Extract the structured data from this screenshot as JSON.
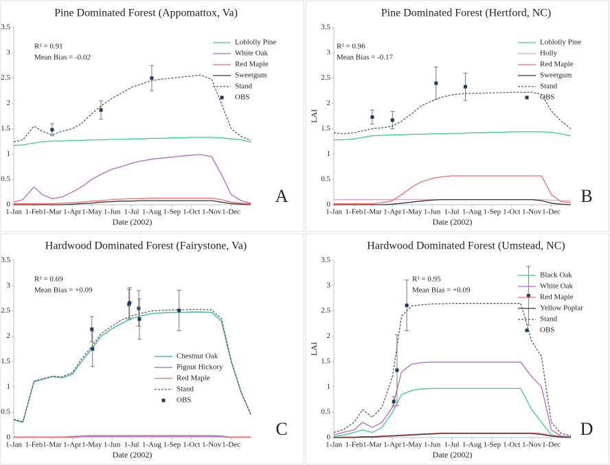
{
  "chart_data": [
    {
      "type": "line",
      "title": "Pine Dominated Forest (Appomattox, Va)",
      "annotations": [
        "R² = 0.91",
        "Mean Bias = -0.02"
      ],
      "panel_label": "A",
      "xlabel": "Date (2002)",
      "x": [
        1,
        15,
        32,
        45,
        60,
        75,
        91,
        105,
        121,
        135,
        152,
        166,
        182,
        196,
        213,
        228,
        244,
        258,
        274,
        288,
        305,
        320,
        335,
        350,
        365
      ],
      "xlim": [
        1,
        365
      ],
      "xticks": [
        {
          "value": 1,
          "label": "1-Jan"
        },
        {
          "value": 32,
          "label": "1-Feb"
        },
        {
          "value": 60,
          "label": "1-Mar"
        },
        {
          "value": 91,
          "label": "1-Apr"
        },
        {
          "value": 121,
          "label": "1-May"
        },
        {
          "value": 152,
          "label": "1-Jun"
        },
        {
          "value": 182,
          "label": "1-Jul"
        },
        {
          "value": 213,
          "label": "1-Aug"
        },
        {
          "value": 244,
          "label": "1-Sep"
        },
        {
          "value": 274,
          "label": "1-Oct"
        },
        {
          "value": 305,
          "label": "1-Nov"
        },
        {
          "value": 335,
          "label": "1-Dec"
        }
      ],
      "ylim": [
        0,
        3.5
      ],
      "yticks": [
        0,
        0.5,
        1,
        1.5,
        2,
        2.5,
        3,
        3.5
      ],
      "legend_position": "upper right",
      "series": [
        {
          "name": "Loblolly Pine",
          "color": "#3cc98f",
          "values": [
            1.17,
            1.18,
            1.22,
            1.24,
            1.26,
            1.26,
            1.27,
            1.27,
            1.28,
            1.28,
            1.29,
            1.29,
            1.3,
            1.3,
            1.31,
            1.31,
            1.32,
            1.32,
            1.33,
            1.33,
            1.33,
            1.32,
            1.3,
            1.28,
            1.24
          ]
        },
        {
          "name": "White Oak",
          "color": "#b266cc",
          "values": [
            0.05,
            0.1,
            0.35,
            0.2,
            0.12,
            0.15,
            0.25,
            0.35,
            0.5,
            0.6,
            0.7,
            0.75,
            0.82,
            0.86,
            0.9,
            0.92,
            0.94,
            0.96,
            0.98,
            0.99,
            0.95,
            0.6,
            0.2,
            0.08,
            0.03
          ]
        },
        {
          "name": "Red Maple",
          "color": "#f06a6a",
          "values": [
            0.02,
            0.02,
            0.02,
            0.02,
            0.02,
            0.03,
            0.04,
            0.05,
            0.07,
            0.08,
            0.1,
            0.11,
            0.12,
            0.12,
            0.13,
            0.13,
            0.13,
            0.13,
            0.13,
            0.13,
            0.13,
            0.1,
            0.05,
            0.03,
            0.02
          ]
        },
        {
          "name": "Sweetgum",
          "color": "#333333",
          "values": [
            0,
            0,
            0,
            0,
            0,
            0,
            0.01,
            0.02,
            0.03,
            0.05,
            0.06,
            0.07,
            0.07,
            0.08,
            0.08,
            0.08,
            0.08,
            0.08,
            0.08,
            0.08,
            0.08,
            0.05,
            0.02,
            0.01,
            0
          ]
        },
        {
          "name": "Stand",
          "color": "#555555",
          "dash": true,
          "values": [
            1.24,
            1.28,
            1.55,
            1.45,
            1.38,
            1.45,
            1.5,
            1.6,
            1.8,
            1.95,
            2.1,
            2.2,
            2.32,
            2.38,
            2.45,
            2.48,
            2.5,
            2.52,
            2.54,
            2.56,
            2.48,
            2.0,
            1.5,
            1.35,
            1.27
          ]
        }
      ],
      "obs": {
        "name": "OBS",
        "color": "#1f3a5f",
        "x": [
          60,
          135,
          213
        ],
        "values": [
          1.48,
          1.87,
          2.5
        ],
        "errors": [
          0.12,
          0.18,
          0.25
        ]
      }
    },
    {
      "type": "line",
      "title": "Pine Dominated Forest (Hertford, NC)",
      "annotations": [
        "R² = 0.96",
        "Mean Bias = -0.17"
      ],
      "panel_label": "B",
      "xlabel": "Date (2002)",
      "ylabel": "LAI",
      "x": [
        1,
        15,
        32,
        45,
        60,
        75,
        91,
        105,
        121,
        135,
        152,
        166,
        182,
        196,
        213,
        228,
        244,
        258,
        274,
        288,
        305,
        320,
        335,
        350,
        365
      ],
      "xlim": [
        1,
        365
      ],
      "xticks": [
        {
          "value": 1,
          "label": "1-Jan"
        },
        {
          "value": 32,
          "label": "1-Feb"
        },
        {
          "value": 60,
          "label": "1-Mar"
        },
        {
          "value": 91,
          "label": "1-Apr"
        },
        {
          "value": 121,
          "label": "1-May"
        },
        {
          "value": 152,
          "label": "1-Jun"
        },
        {
          "value": 182,
          "label": "1-Jul"
        },
        {
          "value": 213,
          "label": "1-Aug"
        },
        {
          "value": 244,
          "label": "1-Sep"
        },
        {
          "value": 274,
          "label": "1-Oct"
        },
        {
          "value": 305,
          "label": "1-Nov"
        },
        {
          "value": 335,
          "label": "1-Dec"
        }
      ],
      "ylim": [
        0,
        3.5
      ],
      "yticks": [
        0,
        0.5,
        1,
        1.5,
        2,
        2.5,
        3,
        3.5
      ],
      "legend_position": "upper right",
      "series": [
        {
          "name": "Loblolly Pine",
          "color": "#3cc98f",
          "values": [
            1.28,
            1.28,
            1.3,
            1.33,
            1.36,
            1.37,
            1.38,
            1.38,
            1.39,
            1.39,
            1.4,
            1.4,
            1.41,
            1.41,
            1.42,
            1.42,
            1.43,
            1.43,
            1.44,
            1.44,
            1.44,
            1.44,
            1.43,
            1.4,
            1.36
          ]
        },
        {
          "name": "Holly",
          "color": "#d9a0c9",
          "values": [
            0.1,
            0.1,
            0.1,
            0.1,
            0.1,
            0.1,
            0.1,
            0.1,
            0.1,
            0.1,
            0.1,
            0.1,
            0.1,
            0.1,
            0.1,
            0.1,
            0.1,
            0.1,
            0.1,
            0.1,
            0.1,
            0.1,
            0.09,
            0.08,
            0.08
          ]
        },
        {
          "name": "Red Maple",
          "color": "#f06a6a",
          "values": [
            0.02,
            0.02,
            0.02,
            0.02,
            0.02,
            0.04,
            0.08,
            0.2,
            0.35,
            0.45,
            0.52,
            0.55,
            0.57,
            0.57,
            0.57,
            0.57,
            0.57,
            0.57,
            0.57,
            0.57,
            0.57,
            0.57,
            0.2,
            0.06,
            0.04
          ]
        },
        {
          "name": "Sweetgum",
          "color": "#333333",
          "values": [
            0,
            0,
            0,
            0,
            0,
            0,
            0.01,
            0.03,
            0.05,
            0.07,
            0.09,
            0.1,
            0.1,
            0.1,
            0.1,
            0.1,
            0.1,
            0.1,
            0.1,
            0.1,
            0.1,
            0.08,
            0.03,
            0.01,
            0
          ]
        },
        {
          "name": "Stand",
          "color": "#555555",
          "dash": true,
          "values": [
            1.42,
            1.4,
            1.42,
            1.46,
            1.5,
            1.52,
            1.55,
            1.65,
            1.8,
            1.95,
            2.05,
            2.12,
            2.17,
            2.19,
            2.2,
            2.2,
            2.21,
            2.21,
            2.22,
            2.22,
            2.22,
            2.18,
            1.85,
            1.65,
            1.5
          ]
        }
      ],
      "obs": {
        "name": "OBS",
        "color": "#1f3a5f",
        "x": [
          60,
          91,
          158,
          203
        ],
        "values": [
          1.73,
          1.67,
          2.4,
          2.33
        ],
        "errors": [
          0.14,
          0.17,
          0.32,
          0.27
        ]
      }
    },
    {
      "type": "line",
      "title": "Hardwood Dominated Forest (Fairystone, Va)",
      "annotations": [
        "R² = 0.69",
        "Mean Bias = +0.09"
      ],
      "panel_label": "C",
      "xlabel": "Date (2002)",
      "x": [
        1,
        15,
        32,
        45,
        60,
        75,
        91,
        105,
        121,
        135,
        152,
        166,
        182,
        196,
        213,
        228,
        244,
        258,
        274,
        288,
        305,
        320,
        335,
        350,
        365
      ],
      "xlim": [
        1,
        365
      ],
      "xticks": [
        {
          "value": 1,
          "label": "1-Jan"
        },
        {
          "value": 32,
          "label": "1-Feb"
        },
        {
          "value": 60,
          "label": "1-Mar"
        },
        {
          "value": 91,
          "label": "1-Apr"
        },
        {
          "value": 121,
          "label": "1-May"
        },
        {
          "value": 152,
          "label": "1-Jun"
        },
        {
          "value": 182,
          "label": "1-Jul"
        },
        {
          "value": 213,
          "label": "1-Aug"
        },
        {
          "value": 244,
          "label": "1-Sep"
        },
        {
          "value": 274,
          "label": "1-Oct"
        },
        {
          "value": 305,
          "label": "1-Nov"
        },
        {
          "value": 335,
          "label": "1-Dec"
        }
      ],
      "ylim": [
        0,
        3.5
      ],
      "yticks": [
        0,
        0.5,
        1,
        1.5,
        2,
        2.5,
        3,
        3.5
      ],
      "legend_position": "center",
      "series": [
        {
          "name": "Chestnut Oak",
          "color": "#2ab889",
          "values": [
            0.35,
            0.3,
            1.1,
            1.15,
            1.2,
            1.18,
            1.25,
            1.5,
            1.75,
            2.0,
            2.15,
            2.25,
            2.35,
            2.4,
            2.45,
            2.46,
            2.47,
            2.47,
            2.48,
            2.48,
            2.47,
            2.3,
            1.5,
            0.9,
            0.45
          ]
        },
        {
          "name": "Pignut Hickory",
          "color": "#9966cc",
          "values": [
            0.01,
            0.01,
            0.01,
            0.01,
            0.01,
            0.01,
            0.02,
            0.03,
            0.04,
            0.04,
            0.04,
            0.04,
            0.04,
            0.04,
            0.04,
            0.04,
            0.04,
            0.04,
            0.04,
            0.04,
            0.04,
            0.03,
            0.01,
            0.01,
            0.01
          ]
        },
        {
          "name": "Red Maple",
          "color": "#f06a6a",
          "values": [
            0.01,
            0.01,
            0.01,
            0.01,
            0.01,
            0.01,
            0.01,
            0.02,
            0.02,
            0.02,
            0.02,
            0.02,
            0.02,
            0.02,
            0.02,
            0.02,
            0.02,
            0.02,
            0.02,
            0.02,
            0.02,
            0.02,
            0.01,
            0.01,
            0.01
          ]
        },
        {
          "name": "Stand",
          "color": "#555555",
          "dash": true,
          "values": [
            0.36,
            0.31,
            1.11,
            1.16,
            1.21,
            1.2,
            1.28,
            1.55,
            1.8,
            2.05,
            2.2,
            2.32,
            2.4,
            2.45,
            2.5,
            2.51,
            2.52,
            2.52,
            2.53,
            2.53,
            2.52,
            2.35,
            1.52,
            0.91,
            0.46
          ]
        }
      ],
      "obs": {
        "name": "OBS",
        "color": "#1f3a5f",
        "x": [
          121,
          122,
          178,
          179,
          193,
          194,
          255
        ],
        "values": [
          2.14,
          1.75,
          2.63,
          2.66,
          2.55,
          2.34,
          2.51
        ],
        "errors": [
          0.25,
          0.35,
          0.3,
          0.3,
          0.35,
          0.4,
          0.4
        ]
      }
    },
    {
      "type": "line",
      "title": "Hardwood Dominated Forest (Umstead, NC)",
      "annotations": [
        "R² = 0.95",
        "Mean Bias = +0.09"
      ],
      "panel_label": "D",
      "xlabel": "Date (2002)",
      "ylabel": "LAI",
      "x": [
        1,
        15,
        32,
        45,
        60,
        75,
        91,
        105,
        121,
        135,
        152,
        166,
        182,
        196,
        213,
        228,
        244,
        258,
        274,
        288,
        305,
        320,
        335,
        350,
        365
      ],
      "xlim": [
        1,
        365
      ],
      "xticks": [
        {
          "value": 1,
          "label": "1-Jan"
        },
        {
          "value": 32,
          "label": "1-Feb"
        },
        {
          "value": 60,
          "label": "1-Mar"
        },
        {
          "value": 91,
          "label": "1-Apr"
        },
        {
          "value": 121,
          "label": "1-May"
        },
        {
          "value": 152,
          "label": "1-Jun"
        },
        {
          "value": 182,
          "label": "1-Jul"
        },
        {
          "value": 213,
          "label": "1-Aug"
        },
        {
          "value": 244,
          "label": "1-Sep"
        },
        {
          "value": 274,
          "label": "1-Oct"
        },
        {
          "value": 305,
          "label": "1-Nov"
        },
        {
          "value": 335,
          "label": "1-Dec"
        }
      ],
      "ylim": [
        0,
        3.5
      ],
      "yticks": [
        0,
        0.5,
        1,
        1.5,
        2,
        2.5,
        3,
        3.5
      ],
      "legend_position": "upper right",
      "series": [
        {
          "name": "Black Oak",
          "color": "#3cc98f",
          "values": [
            0.02,
            0.05,
            0.1,
            0.15,
            0.1,
            0.2,
            0.5,
            0.85,
            0.93,
            0.96,
            0.97,
            0.97,
            0.97,
            0.97,
            0.97,
            0.97,
            0.97,
            0.97,
            0.97,
            0.97,
            0.55,
            0.3,
            0.05,
            0.02,
            0.01
          ]
        },
        {
          "name": "White Oak",
          "color": "#b266cc",
          "values": [
            0.05,
            0.1,
            0.15,
            0.3,
            0.2,
            0.3,
            0.6,
            1.3,
            1.45,
            1.48,
            1.49,
            1.49,
            1.49,
            1.49,
            1.49,
            1.49,
            1.49,
            1.49,
            1.49,
            1.49,
            1.2,
            1.0,
            0.15,
            0.03,
            0.02
          ]
        },
        {
          "name": "Red Maple",
          "color": "#f06a6a",
          "values": [
            0,
            0.01,
            0.01,
            0.02,
            0.02,
            0.03,
            0.04,
            0.05,
            0.06,
            0.07,
            0.08,
            0.09,
            0.09,
            0.09,
            0.09,
            0.09,
            0.09,
            0.09,
            0.09,
            0.09,
            0.09,
            0.08,
            0.04,
            0.02,
            0.01
          ]
        },
        {
          "name": "Yellow Poplar",
          "color": "#333333",
          "values": [
            0,
            0,
            0,
            0.01,
            0.01,
            0.02,
            0.03,
            0.04,
            0.05,
            0.06,
            0.07,
            0.08,
            0.08,
            0.08,
            0.08,
            0.08,
            0.08,
            0.08,
            0.08,
            0.08,
            0.08,
            0.06,
            0.03,
            0.01,
            0
          ]
        },
        {
          "name": "Stand",
          "color": "#555555",
          "dash": true,
          "values": [
            0.1,
            0.15,
            0.3,
            0.55,
            0.4,
            0.6,
            1.2,
            2.4,
            2.6,
            2.62,
            2.64,
            2.64,
            2.65,
            2.65,
            2.65,
            2.65,
            2.65,
            2.65,
            2.65,
            2.65,
            1.9,
            1.6,
            0.3,
            0.08,
            0.04
          ]
        }
      ],
      "obs": {
        "name": "OBS",
        "color": "#1f3a5f",
        "x": [
          93,
          98,
          113,
          300
        ],
        "values": [
          0.71,
          1.33,
          2.61,
          2.8
        ],
        "errors": [
          0.1,
          0.7,
          0.5,
          0.58
        ]
      }
    }
  ]
}
